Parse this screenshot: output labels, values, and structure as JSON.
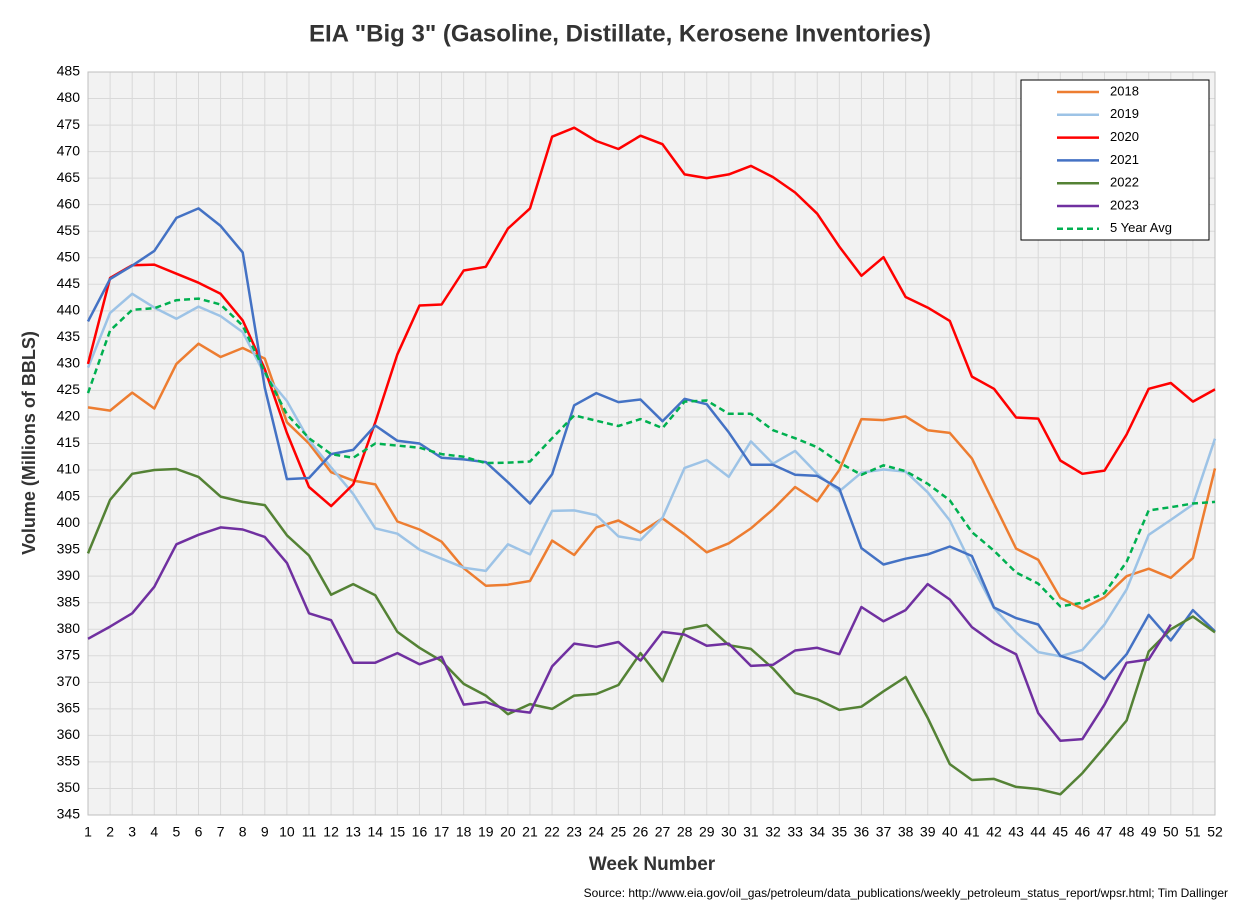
{
  "chart_data": {
    "type": "line",
    "title": "EIA \"Big 3\" (Gasoline, Distillate, Kerosene Inventories)",
    "x_label": "Week Number",
    "y_label": "Volume (Millions of BBLS)",
    "source": "Source: http://www.eia.gov/oil_gas/petroleum/data_publications/weekly_petroleum_status_report/wpsr.html; Tim Dallinger",
    "x": [
      1,
      2,
      3,
      4,
      5,
      6,
      7,
      8,
      9,
      10,
      11,
      12,
      13,
      14,
      15,
      16,
      17,
      18,
      19,
      20,
      21,
      22,
      23,
      24,
      25,
      26,
      27,
      28,
      29,
      30,
      31,
      32,
      33,
      34,
      35,
      36,
      37,
      38,
      39,
      40,
      41,
      42,
      43,
      44,
      45,
      46,
      47,
      48,
      49,
      50,
      51,
      52
    ],
    "xlim": [
      1,
      52
    ],
    "xticks": [
      1,
      2,
      3,
      4,
      5,
      6,
      7,
      8,
      9,
      10,
      11,
      12,
      13,
      14,
      15,
      16,
      17,
      18,
      19,
      20,
      21,
      22,
      23,
      24,
      25,
      26,
      27,
      28,
      29,
      30,
      31,
      32,
      33,
      34,
      35,
      36,
      37,
      38,
      39,
      40,
      41,
      42,
      43,
      44,
      45,
      46,
      47,
      48,
      49,
      50,
      51,
      52
    ],
    "ylim": [
      345,
      485
    ],
    "yticks": [
      345,
      350,
      355,
      360,
      365,
      370,
      375,
      380,
      385,
      390,
      395,
      400,
      405,
      410,
      415,
      420,
      425,
      430,
      435,
      440,
      445,
      450,
      455,
      460,
      465,
      470,
      475,
      480,
      485
    ],
    "grid": true,
    "legend": "top-right",
    "series": [
      {
        "name": "2018",
        "color": "#ed7d31",
        "dashed": false,
        "values": [
          421.8,
          421.2,
          424.6,
          421.6,
          430,
          433.8,
          431.3,
          433,
          431,
          419,
          415,
          409.6,
          408,
          407.3,
          400.3,
          398.8,
          396.5,
          391.5,
          388.2,
          388.4,
          389.1,
          396.7,
          394,
          399.2,
          400.5,
          398.2,
          400.9,
          397.9,
          394.5,
          396.2,
          399,
          402.6,
          406.8,
          404.1,
          410,
          419.6,
          419.4,
          420.1,
          417.5,
          417,
          412.2,
          403.7,
          395.2,
          393.1,
          385.9,
          383.9,
          386,
          390,
          391.4,
          389.7,
          393.4,
          410.3
        ]
      },
      {
        "name": "2019",
        "color": "#9dc3e6",
        "dashed": false,
        "values": [
          429.3,
          439.6,
          443.2,
          440.6,
          438.5,
          440.8,
          439,
          436,
          428,
          423,
          415.6,
          410.5,
          405.5,
          399,
          398,
          395,
          393.3,
          391.6,
          391,
          396,
          394.1,
          402.3,
          402.4,
          401.5,
          397.5,
          396.8,
          401,
          410.4,
          411.9,
          408.7,
          415.4,
          411.2,
          413.6,
          409.3,
          406,
          409.5,
          410.1,
          409.7,
          405.8,
          400.5,
          392,
          384,
          379.4,
          375.7,
          374.9,
          376.1,
          380.9,
          387.5,
          397.8,
          400.6,
          403.5,
          415.9
        ]
      },
      {
        "name": "2020",
        "color": "#ff0000",
        "dashed": false,
        "values": [
          430,
          446.2,
          448.6,
          448.7,
          447,
          445.3,
          443.2,
          438.2,
          429,
          417,
          406.8,
          403.2,
          407.3,
          419,
          431.8,
          441,
          441.2,
          447.6,
          448.3,
          455.5,
          459.3,
          472.8,
          474.5,
          472,
          470.5,
          473,
          471.4,
          465.7,
          465,
          465.7,
          467.3,
          465.2,
          462.3,
          458.3,
          452.1,
          446.6,
          450.1,
          442.6,
          440.6,
          438.1,
          427.6,
          425.3,
          419.9,
          419.7,
          411.8,
          409.3,
          409.9,
          416.7,
          425.3,
          426.4,
          422.9,
          425.2
        ]
      },
      {
        "name": "2021",
        "color": "#4472c4",
        "dashed": false,
        "values": [
          438,
          446,
          448.5,
          451.3,
          457.5,
          459.3,
          456,
          451,
          425.5,
          408.3,
          408.5,
          413,
          413.8,
          418.4,
          415.5,
          415,
          412.3,
          412,
          411.5,
          407.7,
          403.7,
          409.2,
          422.2,
          424.5,
          422.8,
          423.3,
          419.2,
          423.4,
          422.4,
          417.1,
          411,
          411,
          409.1,
          408.9,
          406.5,
          395.3,
          392.2,
          393.3,
          394.1,
          395.6,
          393.8,
          384.1,
          382.1,
          380.9,
          375,
          373.6,
          370.6,
          375.3,
          382.7,
          377.9,
          383.6,
          379.6
        ]
      },
      {
        "name": "2022",
        "color": "#548235",
        "dashed": false,
        "values": [
          394.3,
          404.4,
          409.3,
          410,
          410.2,
          408.7,
          405,
          404,
          403.4,
          397.7,
          393.9,
          386.5,
          388.5,
          386.4,
          379.5,
          376.5,
          374,
          369.7,
          367.5,
          364,
          365.9,
          365,
          367.5,
          367.8,
          369.5,
          375.5,
          370.2,
          380,
          380.8,
          377,
          376.3,
          372.6,
          368,
          366.8,
          364.8,
          365.4,
          368.3,
          371,
          363.3,
          354.6,
          351.6,
          351.8,
          350.3,
          349.9,
          348.9,
          352.9,
          357.8,
          362.8,
          375.8,
          380,
          382.4,
          379.4
        ]
      },
      {
        "name": "2023",
        "color": "#7030a0",
        "dashed": false,
        "values": [
          378.2,
          380.5,
          383,
          388,
          396,
          397.8,
          399.2,
          398.8,
          397.4,
          392.5,
          383,
          381.7,
          373.7,
          373.7,
          375.5,
          373.4,
          374.8,
          365.8,
          366.3,
          364.8,
          364.3,
          373,
          377.3,
          376.7,
          377.6,
          374.1,
          379.5,
          379,
          376.9,
          377.3,
          373.1,
          373.3,
          376,
          376.5,
          375.3,
          384.2,
          381.5,
          383.6,
          388.5,
          385.6,
          380.4,
          377.4,
          375.3,
          364.2,
          359,
          359.3,
          365.8,
          373.7,
          374.3,
          380.9,
          null,
          null
        ]
      },
      {
        "name": "5 Year Avg",
        "color": "#00b050",
        "dashed": true,
        "values": [
          424.5,
          436.3,
          440.2,
          440.5,
          442,
          442.3,
          441.2,
          437.2,
          428.5,
          420.5,
          416,
          413,
          412.3,
          415,
          414.6,
          414.2,
          413,
          412.5,
          411.3,
          411.4,
          411.6,
          416,
          420.3,
          419.3,
          418.3,
          419.6,
          417.9,
          422.9,
          423.1,
          420.6,
          420.6,
          417.5,
          416,
          414.3,
          411.4,
          409.1,
          410.9,
          409.8,
          407.4,
          404.3,
          398.3,
          394.8,
          390.7,
          388.6,
          384.3,
          385,
          386.8,
          392.7,
          402.4,
          403,
          403.7,
          404
        ]
      }
    ]
  }
}
